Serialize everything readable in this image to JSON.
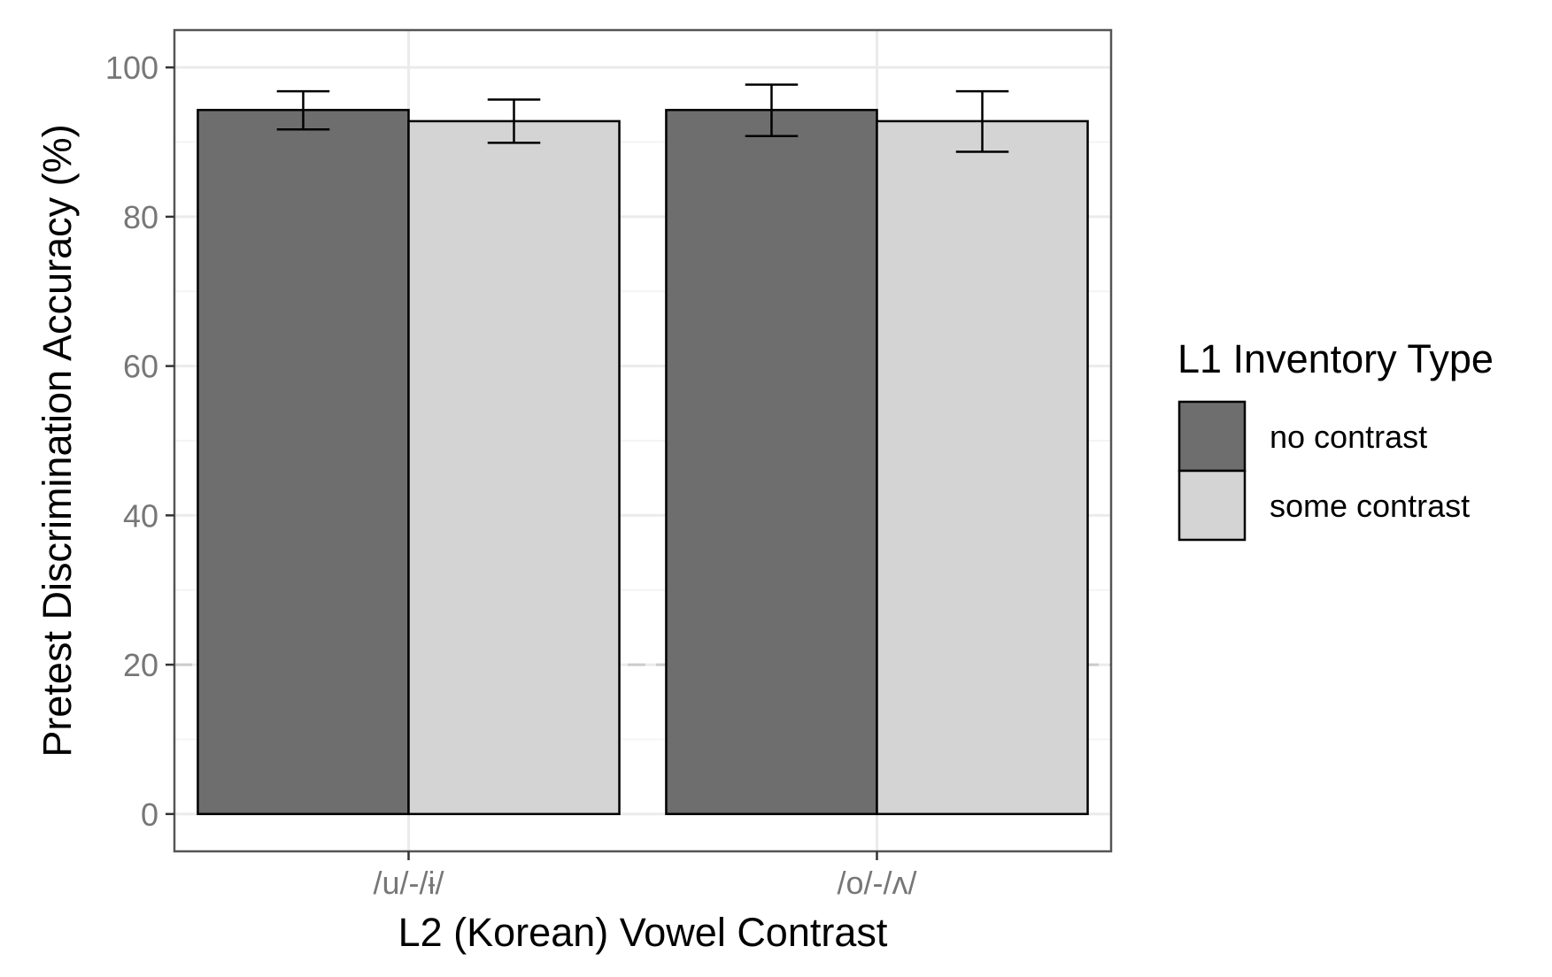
{
  "chart_data": {
    "type": "bar",
    "title": "",
    "xlabel": "L2 (Korean) Vowel Contrast",
    "ylabel": "Pretest Discrimination Accuracy (%)",
    "ylim": [
      -5,
      105
    ],
    "yticks": [
      0,
      20,
      40,
      60,
      80,
      100
    ],
    "ytick_labels": [
      "0",
      "20",
      "40",
      "60",
      "80",
      "100"
    ],
    "categories": [
      "/u/-/ɨ/",
      "/o/-/ʌ/"
    ],
    "series": [
      {
        "name": "no contrast",
        "color": "#6e6e6e",
        "values": [
          94.3,
          94.3
        ],
        "error_low": [
          91.7,
          90.8
        ],
        "error_high": [
          96.8,
          97.7
        ]
      },
      {
        "name": "some contrast",
        "color": "#d4d4d4",
        "values": [
          92.8,
          92.8
        ],
        "error_low": [
          89.9,
          88.7
        ],
        "error_high": [
          95.7,
          96.8
        ]
      }
    ],
    "reference_line": {
      "value": 20,
      "style": "dashed",
      "color": "#cccccc"
    },
    "grid": true,
    "legend": {
      "title": "L1 Inventory Type",
      "placement": "right"
    },
    "theme": {
      "panel_border": "#555555",
      "grid_major": "#ebebeb",
      "grid_minor": "#f4f4f4",
      "axis_text": "#777777",
      "title_text": "#000000"
    }
  }
}
